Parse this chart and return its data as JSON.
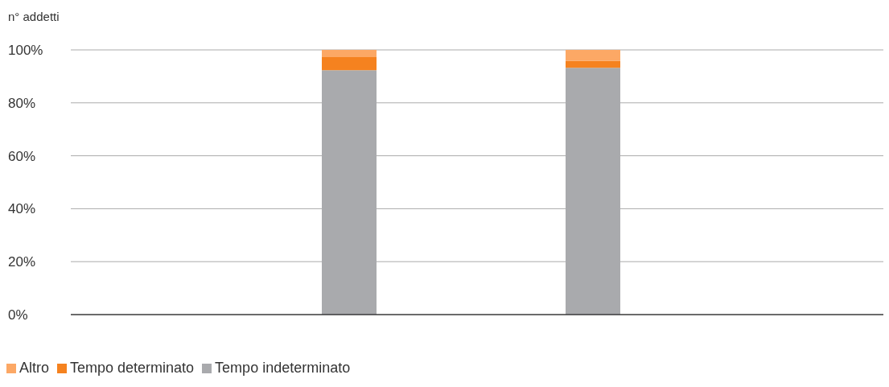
{
  "chart_data": {
    "type": "bar",
    "stacked": true,
    "ylabel": "n° addetti",
    "categories": [
      null,
      null
    ],
    "series": [
      {
        "name": "Tempo indeterminato",
        "color": "#a9aaad",
        "values": [
          92.3,
          93.2
        ]
      },
      {
        "name": "Tempo determinato",
        "color": "#f5821f",
        "values": [
          5.0,
          2.7
        ]
      },
      {
        "name": "Altro",
        "color": "#fca865",
        "values": [
          2.7,
          4.1
        ]
      }
    ],
    "ylim": [
      0,
      100
    ],
    "yticks": [
      {
        "value": 0,
        "label": "0%"
      },
      {
        "value": 20,
        "label": "20%"
      },
      {
        "value": 40,
        "label": "40%"
      },
      {
        "value": 60,
        "label": "60%"
      },
      {
        "value": 80,
        "label": "80%"
      },
      {
        "value": 100,
        "label": "100%"
      }
    ],
    "grid": "y",
    "legend": "bottom left"
  }
}
